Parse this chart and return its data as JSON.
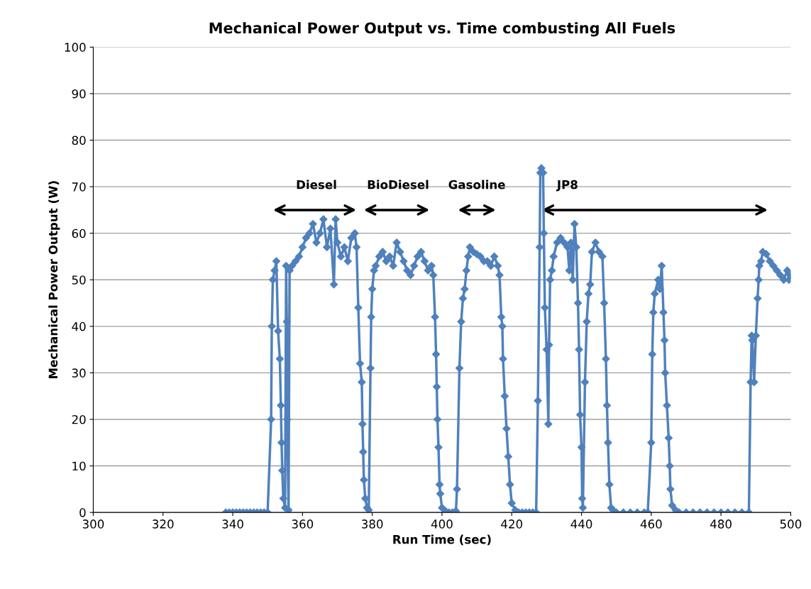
{
  "chart_data": {
    "type": "line",
    "title": "Mechanical Power Output vs. Time combusting All Fuels",
    "xlabel": "Run Time (sec)",
    "ylabel": "Mechanical Power Output (W)",
    "series": [
      {
        "color": "#4f81bd",
        "x": [
          338,
          339,
          340,
          341,
          342,
          343,
          344,
          345,
          346,
          347,
          348,
          349,
          350,
          351,
          351.2,
          351.5,
          352,
          352.5,
          353,
          353.5,
          353.8,
          354,
          354.2,
          354.5,
          355,
          355.3,
          355.5,
          355.6,
          356,
          356.3,
          357,
          358,
          359,
          360,
          361,
          362,
          363,
          364,
          365,
          366,
          367,
          368,
          369,
          369.5,
          370,
          371,
          372,
          373,
          374,
          375,
          375.5,
          376,
          376.5,
          377,
          377.2,
          377.4,
          377.6,
          378,
          378.5,
          379,
          379.5,
          379.7,
          380,
          380.5,
          381,
          382,
          383,
          384,
          385,
          386,
          387,
          388,
          389,
          390,
          391,
          392,
          393,
          394,
          395,
          396,
          397,
          397.5,
          398,
          398.3,
          398.5,
          398.7,
          399,
          399.3,
          399.5,
          400,
          401,
          402,
          403,
          404,
          404.3,
          405,
          405.5,
          406,
          406.5,
          407,
          407.5,
          408,
          409,
          410,
          411,
          412,
          413,
          414,
          415,
          416,
          416.5,
          417,
          417.3,
          417.5,
          418,
          418.5,
          419,
          419.5,
          420,
          421,
          422,
          423,
          424,
          425,
          426,
          427,
          427.5,
          428,
          428.2,
          428.5,
          429,
          429.2,
          429.5,
          430,
          430.5,
          430.7,
          431,
          431.5,
          432,
          433,
          434,
          435,
          436,
          436.5,
          437,
          437.5,
          438,
          438.5,
          439,
          439.3,
          439.6,
          440,
          440.2,
          440.4,
          441,
          441.5,
          442,
          442.5,
          443,
          444,
          445,
          446,
          446.5,
          447,
          447.3,
          447.6,
          448,
          448.5,
          449,
          450,
          452,
          454,
          456,
          458,
          459,
          460,
          460.3,
          460.6,
          461,
          462,
          462.5,
          463,
          463.5,
          463.8,
          464,
          464.5,
          465,
          465.3,
          465.5,
          466,
          467,
          468,
          470,
          472,
          474,
          476,
          478,
          480,
          482,
          484,
          486,
          488,
          488.5,
          488.8,
          489,
          489.5,
          490,
          490.5,
          490.8,
          491,
          491.5,
          492,
          493,
          494,
          495,
          496,
          497,
          498,
          499,
          499.5,
          500
        ],
        "values": [
          0,
          0,
          0,
          0,
          0,
          0,
          0,
          0,
          0,
          0,
          0,
          0,
          0,
          20,
          40,
          50,
          52,
          54,
          39,
          33,
          23,
          15,
          9,
          3,
          1,
          53,
          41,
          20,
          0.5,
          52,
          53,
          54,
          55,
          57,
          59,
          60,
          62,
          58,
          60,
          63,
          57,
          61,
          49,
          63,
          58,
          55,
          57,
          54,
          59,
          60,
          57,
          44,
          32,
          28,
          19,
          13,
          7,
          3,
          1,
          0.5,
          31,
          42,
          48,
          52,
          53,
          55,
          56,
          54,
          55,
          53,
          58,
          56,
          54,
          52,
          51,
          53,
          55,
          56,
          54,
          52,
          53,
          51,
          42,
          34,
          27,
          20,
          14,
          6,
          4,
          1,
          0.3,
          0,
          0,
          0.3,
          5,
          31,
          41,
          46,
          48,
          52,
          55,
          57,
          56,
          55.5,
          55,
          54,
          54,
          53,
          55,
          53,
          51,
          42,
          40,
          33,
          25,
          18,
          12,
          6,
          2,
          0.5,
          0,
          0,
          0,
          0,
          0,
          0,
          24,
          57,
          73,
          74,
          73,
          60,
          44,
          35,
          19,
          36,
          50,
          52,
          55,
          58,
          59,
          58,
          57,
          52,
          58,
          50,
          62,
          57,
          45,
          35,
          21,
          14,
          3,
          1,
          28,
          41,
          47,
          49,
          56,
          58,
          56,
          55,
          45,
          33,
          23,
          15,
          6,
          1,
          0.5,
          0,
          0,
          0,
          0,
          0,
          0,
          15,
          34,
          43,
          47,
          50,
          48,
          53,
          43,
          37,
          30,
          23,
          16,
          10,
          5,
          1.5,
          0.5,
          0,
          0,
          0,
          0,
          0,
          0,
          0,
          0,
          0,
          0,
          0,
          28,
          38,
          37,
          28,
          38,
          46,
          50,
          53,
          54,
          56,
          55.5,
          54,
          53,
          52,
          51,
          50,
          52,
          50,
          51
        ]
      }
    ],
    "xlim": [
      300,
      500
    ],
    "xticks": [
      300,
      320,
      340,
      360,
      380,
      400,
      420,
      440,
      460,
      480,
      500
    ],
    "ylim": [
      0,
      100
    ],
    "yticks": [
      0,
      10,
      20,
      30,
      40,
      50,
      60,
      70,
      80,
      90,
      100
    ],
    "grid": "y",
    "marker": "diamond",
    "line_style": "solid",
    "legend": false,
    "annotations": [
      "Diesel",
      "BioDiesel",
      "Gasoline",
      "JP8"
    ]
  }
}
